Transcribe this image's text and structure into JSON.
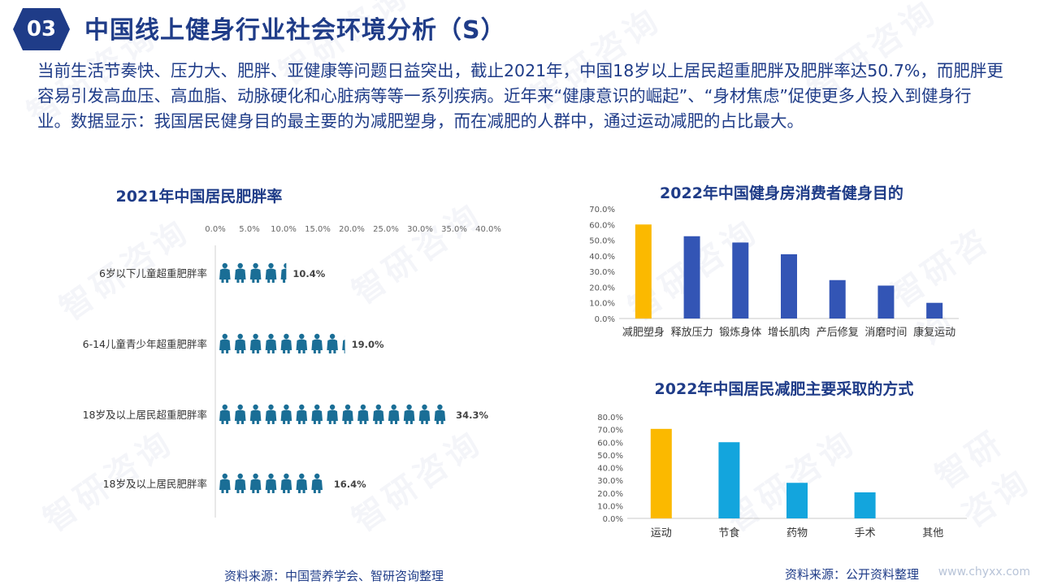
{
  "header": {
    "section_number": "03",
    "title": "中国线上健身行业社会环境分析（S）"
  },
  "intro_paragraph": "当前生活节奏快、压力大、肥胖、亚健康等问题日益突出，截止2021年，中国18岁以上居民超重肥胖及肥胖率达50.7%，而肥胖更容易引发高血压、高血脂、动脉硬化和心脏病等等一系列疾病。近年来“健康意识的崛起”、“身材焦虑”促使更多人投入到健身行业。数据显示：我国居民健身目的最主要的为减肥塑身，而在减肥的人群中，通过运动减肥的占比最大。",
  "chart_data": [
    {
      "type": "bar",
      "orientation": "horizontal",
      "title": "2021年中国居民肥胖率",
      "categories": [
        "6岁以下儿童超重肥胖率",
        "6-14儿童青少年超重肥胖率",
        "18岁及以上居民超重肥胖率",
        "18岁及以上居民肥胖率"
      ],
      "values": [
        10.4,
        19.0,
        34.3,
        16.4
      ],
      "value_labels": [
        "10.4%",
        "19.0%",
        "34.3%",
        "16.4%"
      ],
      "xlim": [
        0,
        40
      ],
      "x_ticks": [
        "0.0%",
        "5.0%",
        "10.0%",
        "15.0%",
        "20.0%",
        "25.0%",
        "30.0%",
        "35.0%",
        "40.0%"
      ],
      "mark_style": "person-icons",
      "colors": {
        "icon": "#1a6e96"
      }
    },
    {
      "type": "bar",
      "title": "2022年中国健身房消费者健身目的",
      "categories": [
        "减肥塑身",
        "释放压力",
        "锻炼身体",
        "增长肌肉",
        "产后修复",
        "消磨时间",
        "康复运动"
      ],
      "values": [
        60,
        52.5,
        48.5,
        41,
        24.5,
        21,
        10
      ],
      "ylim": [
        0,
        70
      ],
      "y_ticks": [
        "0.0%",
        "10.0%",
        "20.0%",
        "30.0%",
        "40.0%",
        "50.0%",
        "60.0%",
        "70.0%"
      ],
      "grid": false,
      "colors": {
        "highlight": "#fbb900",
        "bars": "#3355b5"
      }
    },
    {
      "type": "bar",
      "title": "2022年中国居民减肥主要采取的方式",
      "categories": [
        "运动",
        "节食",
        "药物",
        "手术",
        "其他"
      ],
      "values": [
        70.5,
        60,
        28,
        20.5,
        0
      ],
      "ylim": [
        0,
        80
      ],
      "y_ticks": [
        "0.0%",
        "10.0%",
        "20.0%",
        "30.0%",
        "40.0%",
        "50.0%",
        "60.0%",
        "70.0%",
        "80.0%"
      ],
      "grid": false,
      "colors": {
        "highlight": "#fbb900",
        "bars": "#13a5dd"
      }
    }
  ],
  "sources": {
    "left": "资料来源：中国营养学会、智研咨询整理",
    "right": "资料来源：公开资料整理"
  },
  "website": "www.chyxx.com",
  "watermark_text": "智研咨询"
}
